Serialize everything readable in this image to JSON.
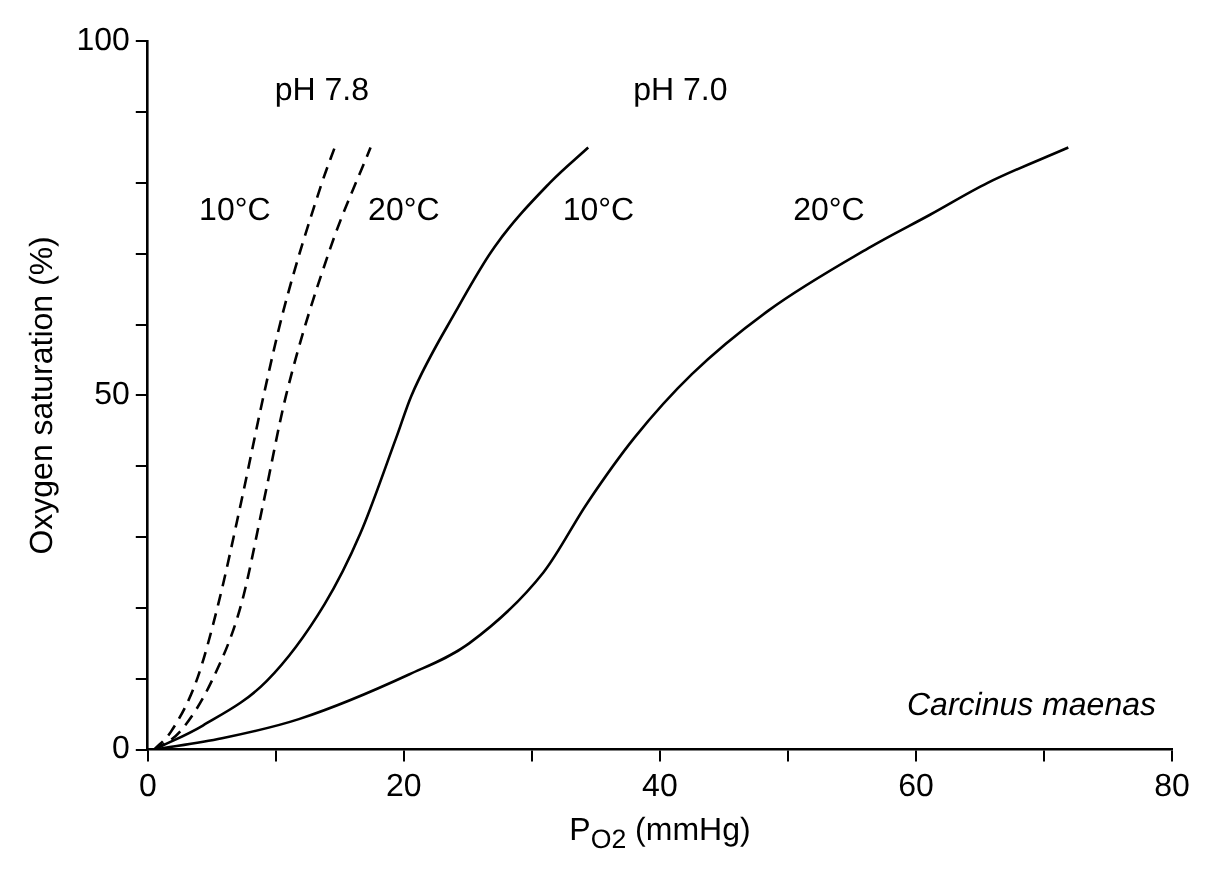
{
  "chart_data": {
    "type": "line",
    "xlabel": "P$_{O2}$ (mmHg)",
    "ylabel": "Oxygen saturation (%)",
    "xlim": [
      0,
      80
    ],
    "xticks": [
      0,
      {
        "value": 10,
        "label": null
      },
      20,
      {
        "value": 30,
        "label": null
      },
      40,
      {
        "value": 50,
        "label": null
      },
      60,
      {
        "value": 70,
        "label": null
      },
      80
    ],
    "ylim": [
      0,
      100
    ],
    "yticks": [
      0,
      {
        "value": 10,
        "label": null
      },
      {
        "value": 20,
        "label": null
      },
      {
        "value": 30,
        "label": null
      },
      {
        "value": 40,
        "label": null
      },
      50,
      {
        "value": 60,
        "label": null
      },
      {
        "value": 70,
        "label": null
      },
      {
        "value": 80,
        "label": null
      },
      {
        "value": 90,
        "label": null
      },
      100
    ],
    "grid": false,
    "legend": false,
    "marker": "none",
    "series": [
      {
        "color": "#000000",
        "line_style": "dashed",
        "x": [
          0.5,
          1.8,
          3.8,
          5.5,
          7.3,
          9.05,
          10.6,
          13.6,
          14.6
        ],
        "values": [
          0,
          2.5,
          9.7,
          20.5,
          35,
          50,
          62,
          80,
          85
        ]
      },
      {
        "color": "#000000",
        "line_style": "dashed",
        "x": [
          0.5,
          2.5,
          5.0,
          7.3,
          9.05,
          10.8,
          14.3,
          17.4
        ],
        "values": [
          0,
          2.5,
          9.7,
          20.5,
          35,
          50,
          71,
          85
        ]
      },
      {
        "color": "#000000",
        "line_style": "solid",
        "x": [
          0.5,
          4.3,
          9.3,
          13.8,
          16.6,
          19.4,
          20.6,
          24.1,
          27.1,
          31.4,
          34.4
        ],
        "values": [
          0,
          3.4,
          9.7,
          20.5,
          30.5,
          44,
          50,
          62,
          71,
          80,
          85
        ]
      },
      {
        "color": "#000000",
        "line_style": "solid",
        "x": [
          0.5,
          5.8,
          11.8,
          20.4,
          25.1,
          30.9,
          34.4,
          38.0,
          42.5,
          48.5,
          56.5,
          61.1,
          65.6,
          71.9
        ],
        "values": [
          0,
          1.6,
          4.3,
          10.6,
          15,
          25,
          35,
          44,
          53,
          62,
          71,
          75.5,
          80,
          85
        ]
      }
    ],
    "annotations": [
      "pH 7.8",
      "pH 7.0",
      "10°C",
      "20°C",
      "10°C",
      "20°C",
      "Carcinus maenas"
    ]
  }
}
